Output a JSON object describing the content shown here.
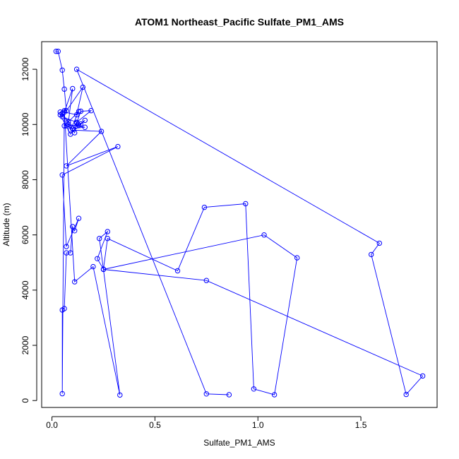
{
  "chart_data": {
    "type": "line",
    "title": "ATOM1 Northeast_Pacific Sulfate_PM1_AMS",
    "xlabel": "Sulfate_PM1_AMS",
    "ylabel": "Altitude (m)",
    "xlim": [
      -0.05,
      1.87
    ],
    "ylim": [
      -250,
      13000
    ],
    "xticks": [
      0.0,
      0.5,
      1.0,
      1.5
    ],
    "xtick_labels": [
      "0.0",
      "0.5",
      "1.0",
      "1.5"
    ],
    "yticks": [
      0,
      2000,
      4000,
      6000,
      8000,
      10000,
      12000
    ],
    "ytick_labels": [
      "0",
      "2000",
      "4000",
      "6000",
      "8000",
      "10000",
      "12000"
    ],
    "grid": false,
    "series": [
      {
        "color": "#0000ff",
        "marker": "open-circle",
        "x": [
          0.02,
          0.03,
          0.05,
          0.06,
          0.07,
          0.04,
          0.08,
          0.1,
          0.06,
          0.12,
          0.15,
          0.05,
          0.14,
          0.1,
          0.07,
          0.13,
          0.16,
          0.09,
          0.04,
          0.05,
          0.11,
          0.12,
          0.14,
          0.19,
          0.12,
          0.1,
          0.16,
          0.08,
          0.06,
          0.13,
          0.09,
          0.24,
          0.07,
          0.32,
          0.05,
          0.07,
          0.13,
          0.11,
          0.1,
          0.09,
          0.07,
          0.06,
          0.05,
          0.05,
          0.06,
          0.11,
          0.2,
          0.33,
          0.23,
          0.27,
          0.22,
          0.25,
          0.27,
          0.61,
          0.74,
          0.94,
          0.98,
          1.08,
          1.19,
          1.03,
          0.25,
          0.75,
          1.8,
          1.72,
          1.55,
          1.59,
          0.12,
          0.75,
          0.86
        ],
        "y": [
          12650,
          12650,
          11970,
          11280,
          10500,
          10450,
          10100,
          11300,
          10450,
          10350,
          11350,
          10280,
          10020,
          9850,
          9950,
          9980,
          10150,
          9650,
          10350,
          10400,
          9700,
          10050,
          10480,
          10500,
          10080,
          9850,
          9900,
          10000,
          9950,
          10470,
          9800,
          9750,
          8500,
          9200,
          8170,
          5580,
          6600,
          6150,
          6300,
          5350,
          5350,
          3330,
          3280,
          250,
          10500,
          4300,
          4850,
          200,
          5870,
          6120,
          5140,
          4760,
          5870,
          4700,
          7000,
          7130,
          420,
          210,
          5170,
          6000,
          4750,
          4350,
          890,
          220,
          5290,
          5700,
          12000,
          240,
          210
        ]
      }
    ]
  }
}
